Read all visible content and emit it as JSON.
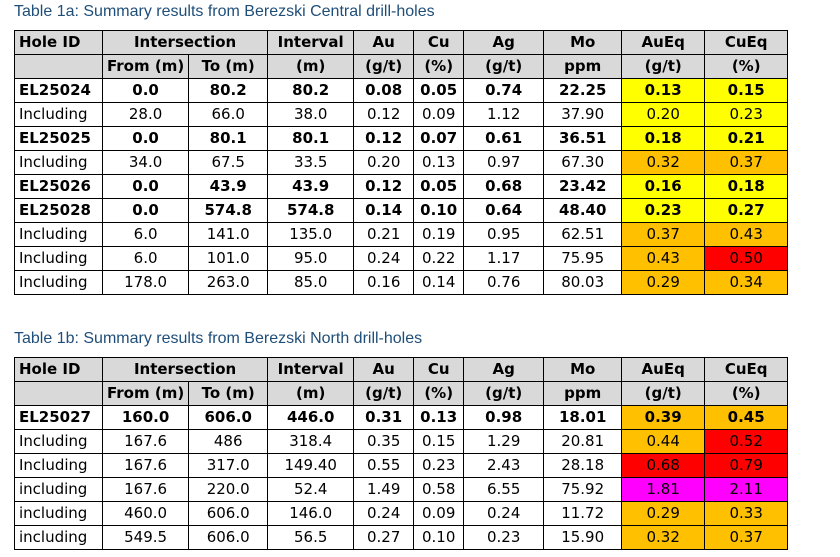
{
  "colors": {
    "header_bg": "#d9d9d9",
    "yellow": "#ffff00",
    "orange": "#ffc000",
    "red": "#ff0000",
    "magenta": "#ff00ff",
    "caption": "#1f4e79"
  },
  "tables": [
    {
      "title": "Table 1a: Summary results from Berezski Central drill-holes",
      "header1": [
        "Hole ID",
        "Intersection",
        "Interval",
        "Au",
        "Cu",
        "Ag",
        "Mo",
        "AuEq",
        "CuEq"
      ],
      "header2": [
        "From (m)",
        "To (m)",
        "(m)",
        "(g/t)",
        "(%)",
        "(g/t)",
        "ppm",
        "(g/t)",
        "(%)"
      ],
      "rows": [
        {
          "cells": [
            "EL25024",
            "0.0",
            "80.2",
            "80.2",
            "0.08",
            "0.05",
            "0.74",
            "22.25",
            "0.13",
            "0.15"
          ],
          "bold": true,
          "aueq_color": "yellow",
          "cueq_color": "yellow"
        },
        {
          "cells": [
            "Including",
            "28.0",
            "66.0",
            "38.0",
            "0.12",
            "0.09",
            "1.12",
            "37.90",
            "0.20",
            "0.23"
          ],
          "bold": false,
          "aueq_color": "yellow",
          "cueq_color": "yellow"
        },
        {
          "cells": [
            "EL25025",
            "0.0",
            "80.1",
            "80.1",
            "0.12",
            "0.07",
            "0.61",
            "36.51",
            "0.18",
            "0.21"
          ],
          "bold": true,
          "aueq_color": "yellow",
          "cueq_color": "yellow"
        },
        {
          "cells": [
            "Including",
            "34.0",
            "67.5",
            "33.5",
            "0.20",
            "0.13",
            "0.97",
            "67.30",
            "0.32",
            "0.37"
          ],
          "bold": false,
          "aueq_color": "orange",
          "cueq_color": "orange"
        },
        {
          "cells": [
            "EL25026",
            "0.0",
            "43.9",
            "43.9",
            "0.12",
            "0.05",
            "0.68",
            "23.42",
            "0.16",
            "0.18"
          ],
          "bold": true,
          "aueq_color": "yellow",
          "cueq_color": "yellow"
        },
        {
          "cells": [
            "EL25028",
            "0.0",
            "574.8",
            "574.8",
            "0.14",
            "0.10",
            "0.64",
            "48.40",
            "0.23",
            "0.27"
          ],
          "bold": true,
          "aueq_color": "yellow",
          "cueq_color": "yellow"
        },
        {
          "cells": [
            "Including",
            "6.0",
            "141.0",
            "135.0",
            "0.21",
            "0.19",
            "0.95",
            "62.51",
            "0.37",
            "0.43"
          ],
          "bold": false,
          "aueq_color": "orange",
          "cueq_color": "orange"
        },
        {
          "cells": [
            "Including",
            "6.0",
            "101.0",
            "95.0",
            "0.24",
            "0.22",
            "1.17",
            "75.95",
            "0.43",
            "0.50"
          ],
          "bold": false,
          "aueq_color": "orange",
          "cueq_color": "red"
        },
        {
          "cells": [
            "Including",
            "178.0",
            "263.0",
            "85.0",
            "0.16",
            "0.14",
            "0.76",
            "80.03",
            "0.29",
            "0.34"
          ],
          "bold": false,
          "aueq_color": "orange",
          "cueq_color": "orange"
        }
      ]
    },
    {
      "title": "Table 1b: Summary results from Berezski North drill-holes",
      "header1": [
        "Hole ID",
        "Intersection",
        "Interval",
        "Au",
        "Cu",
        "Ag",
        "Mo",
        "AuEq",
        "CuEq"
      ],
      "header2": [
        "From (m)",
        "To (m)",
        "(m)",
        "(g/t)",
        "(%)",
        "(g/t)",
        "ppm",
        "(g/t)",
        "(%)"
      ],
      "rows": [
        {
          "cells": [
            "EL25027",
            "160.0",
            "606.0",
            "446.0",
            "0.31",
            "0.13",
            "0.98",
            "18.01",
            "0.39",
            "0.45"
          ],
          "bold": true,
          "aueq_color": "orange",
          "cueq_color": "orange"
        },
        {
          "cells": [
            " Including",
            "167.6",
            "486",
            "318.4",
            "0.35",
            "0.15",
            "1.29",
            "20.81",
            "0.44",
            "0.52"
          ],
          "bold": false,
          "aueq_color": "orange",
          "cueq_color": "red"
        },
        {
          "cells": [
            "Including",
            "167.6",
            "317.0",
            "149.40",
            "0.55",
            "0.23",
            "2.43",
            "28.18",
            "0.68",
            "0.79"
          ],
          "bold": false,
          "aueq_color": "red",
          "cueq_color": "red"
        },
        {
          "cells": [
            "including",
            "167.6",
            "220.0",
            "52.4",
            "1.49",
            "0.58",
            "6.55",
            "75.92",
            "1.81",
            "2.11"
          ],
          "bold": false,
          "aueq_color": "magenta",
          "cueq_color": "magenta"
        },
        {
          "cells": [
            "including",
            "460.0",
            "606.0",
            "146.0",
            "0.24",
            "0.09",
            "0.24",
            "11.72",
            "0.29",
            "0.33"
          ],
          "bold": false,
          "aueq_color": "orange",
          "cueq_color": "orange"
        },
        {
          "cells": [
            "including",
            "549.5",
            "606.0",
            "56.5",
            "0.27",
            "0.10",
            "0.23",
            "15.90",
            "0.32",
            "0.37"
          ],
          "bold": false,
          "aueq_color": "orange",
          "cueq_color": "orange"
        }
      ]
    }
  ]
}
